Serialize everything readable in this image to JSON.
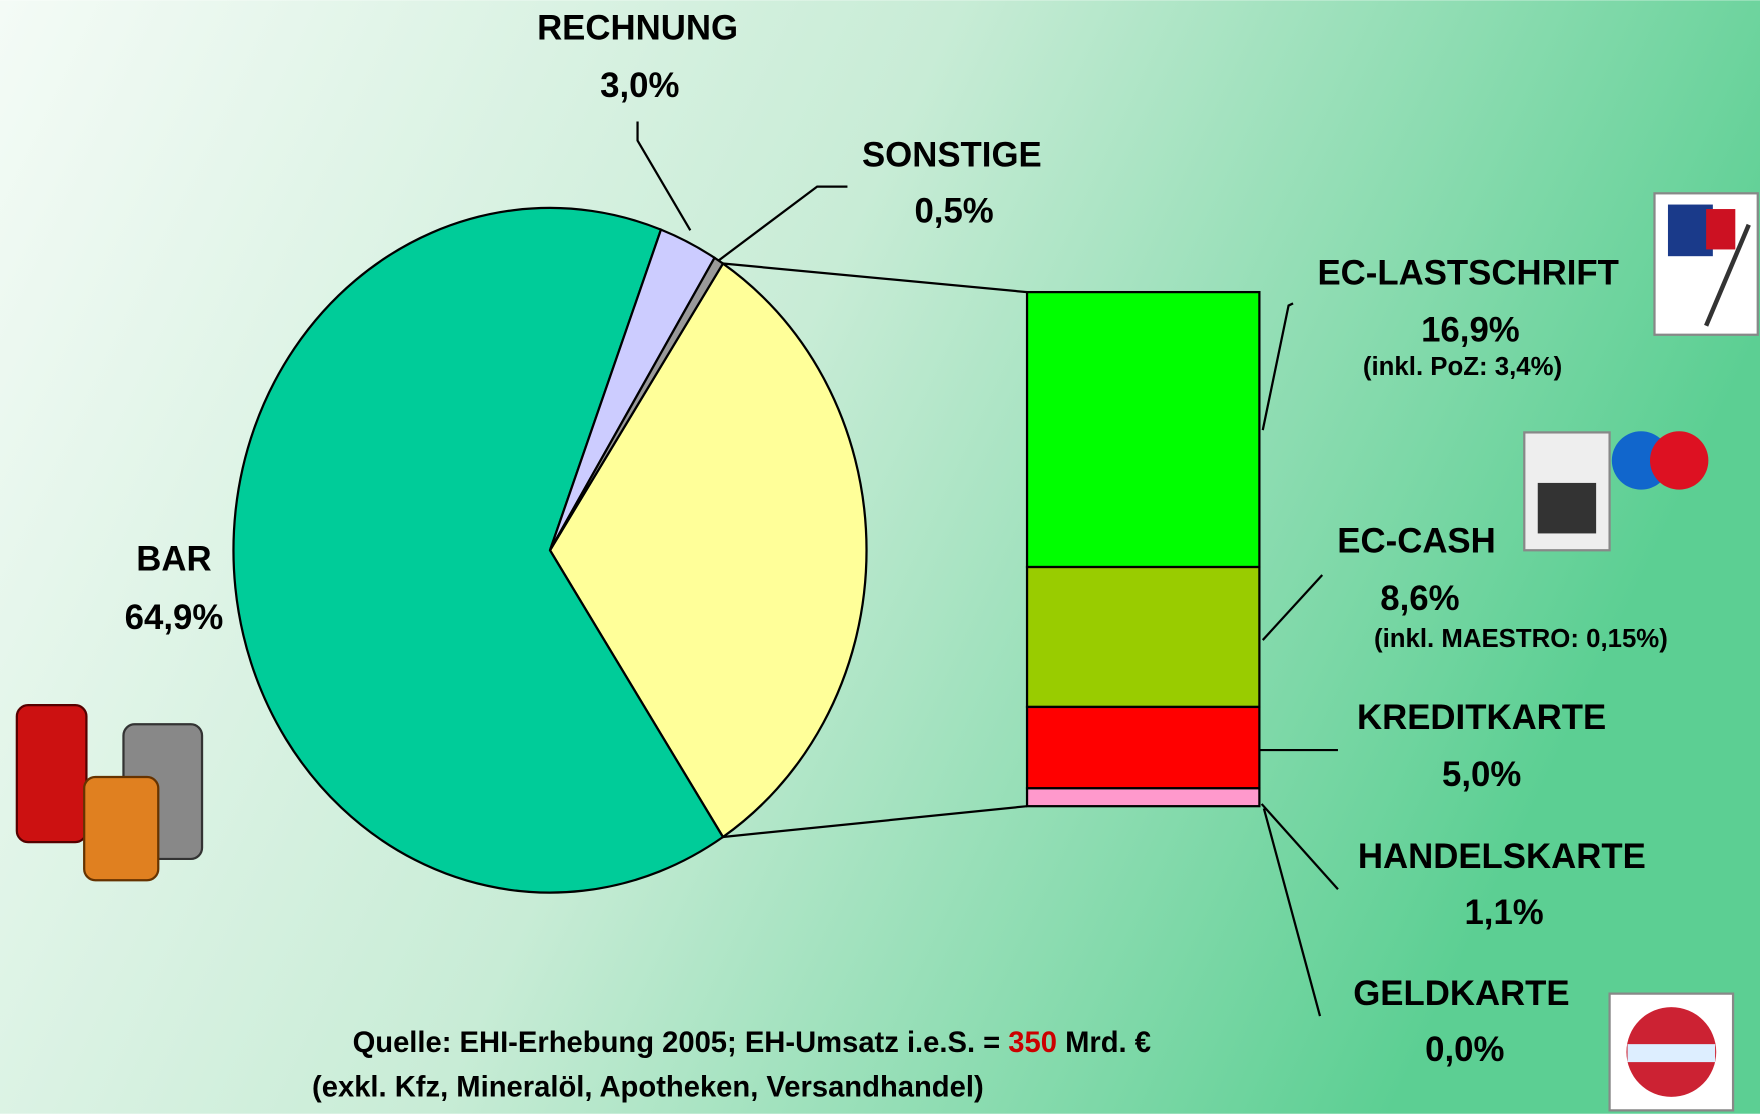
{
  "chart_data": {
    "type": "pie",
    "categories": [
      "BAR",
      "RECHNUNG",
      "SONSTIGE"
    ],
    "values": [
      64.9,
      3.0,
      0.5
    ],
    "value_labels": [
      "64,9%",
      "3,0%",
      "0,5%"
    ],
    "colors": [
      "#00cc99",
      "#ccccff",
      "#999999"
    ],
    "breakdown": {
      "color": "#ffff99",
      "categories": [
        "EC-LASTSCHRIFT",
        "EC-CASH",
        "KREDITKARTE",
        "HANDELSKARTE",
        "GELDKARTE"
      ],
      "values": [
        16.9,
        8.6,
        5.0,
        1.1,
        0.0
      ],
      "value_labels": [
        "16,9%",
        "8,6%",
        "5,0%",
        "1,1%",
        "0,0%"
      ],
      "notes": [
        "(inkl. PoZ: 3,4%)",
        "(inkl. MAESTRO: 0,15%)",
        null,
        null,
        null
      ],
      "colors": [
        "#00ff00",
        "#99cc00",
        "#ff0000",
        "#ff99cc",
        "#ffffff"
      ]
    },
    "source": {
      "parts": [
        "Quelle: EHI-Erhebung 2005; EH-Umsatz i.e.S. = ",
        "350",
        " Mrd. €"
      ],
      "part_colors": [
        "#000000",
        "#cc0000",
        "#000000"
      ],
      "line2": "(exkl. Kfz, Mineralöl, Apotheken, Versandhandel)"
    }
  }
}
